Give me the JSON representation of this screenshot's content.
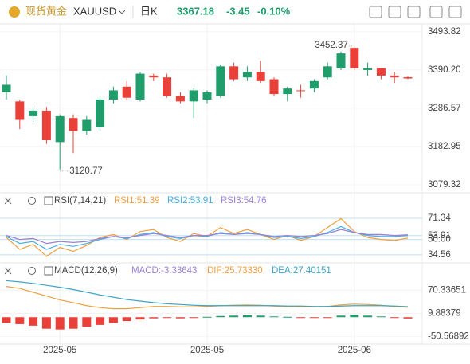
{
  "header": {
    "name": "现货黄金",
    "symbol": "XAUUSD",
    "period": "日K",
    "change": "-3.45",
    "change_pct": "-0.10%"
  },
  "chart_data": [
    {
      "type": "candlestick",
      "categories": [
        null,
        null,
        null,
        null,
        "2025-05",
        null,
        null,
        null,
        null,
        null,
        null,
        null,
        null,
        null,
        null,
        "2025-05",
        null,
        null,
        null,
        null,
        null,
        null,
        null,
        null,
        null,
        null,
        "2025-06",
        null,
        null,
        null,
        null
      ],
      "open": [
        3330,
        3305,
        3265,
        3280,
        3195,
        3260,
        3225,
        3235,
        3310,
        3345,
        3310,
        3375,
        3370,
        3320,
        3305,
        3310,
        3320,
        3400,
        3370,
        3385,
        3365,
        3325,
        3335,
        3340,
        3370,
        3395,
        3450,
        3390,
        3395,
        3375,
        3370.63
      ],
      "high": [
        3375,
        3310,
        3290,
        3290,
        3270,
        3270,
        3265,
        3320,
        3345,
        3360,
        3385,
        3380,
        3380,
        3330,
        3340,
        3335,
        3405,
        3410,
        3400,
        3415,
        3370,
        3345,
        3350,
        3365,
        3410,
        3440,
        3452.37,
        3410,
        3395,
        3385,
        3372
      ],
      "low": [
        3310,
        3230,
        3250,
        3190,
        3120.77,
        3165,
        3215,
        3225,
        3300,
        3310,
        3305,
        3360,
        3315,
        3300,
        3260,
        3300,
        3315,
        3360,
        3360,
        3355,
        3320,
        3305,
        3315,
        3330,
        3365,
        3390,
        3390,
        3375,
        3365,
        3355,
        3365
      ],
      "close": [
        3350,
        3255,
        3280,
        3200,
        3265,
        3225,
        3255,
        3310,
        3335,
        3315,
        3380,
        3370,
        3320,
        3305,
        3335,
        3330,
        3400,
        3365,
        3385,
        3360,
        3325,
        3340,
        3333,
        3360,
        3400,
        3435,
        3395,
        3395,
        3375,
        3370,
        3367.18
      ],
      "up_color": "#1f9d6b",
      "down_color": "#e9403a",
      "ylim": [
        3062,
        3515
      ],
      "yticks": [
        {
          "value": 3493.82,
          "label": "3493.82"
        },
        {
          "value": 3390.2,
          "label": "3390.20"
        },
        {
          "value": 3286.57,
          "label": "3286.57"
        },
        {
          "value": 3182.95,
          "label": "3182.95"
        },
        {
          "value": 3079.32,
          "label": "3079.32"
        }
      ]
    },
    {
      "type": "line",
      "title": "RSI(7,14,21)",
      "series": [
        {
          "name": "RSI1:51.39",
          "color": "#f0a040",
          "values": [
            52,
            40,
            45,
            33,
            42,
            38,
            44,
            52,
            55,
            50,
            58,
            60,
            52,
            48,
            56,
            53,
            62,
            56,
            60,
            55,
            50,
            54,
            49,
            53,
            62,
            71,
            58,
            52,
            50,
            49,
            51.39
          ]
        },
        {
          "name": "RSI2:53.91",
          "color": "#4aaee0",
          "values": [
            53,
            46,
            48,
            40,
            45,
            43,
            46,
            50,
            53,
            51,
            55,
            57,
            53,
            51,
            54,
            53,
            57,
            55,
            57,
            55,
            52,
            53,
            51,
            53,
            57,
            63,
            57,
            54,
            53,
            53,
            53.91
          ]
        },
        {
          "name": "RSI3:54.76",
          "color": "#9b80d6",
          "values": [
            54,
            50,
            51,
            46,
            48,
            47,
            48,
            51,
            53,
            52,
            54,
            56,
            54,
            52,
            54,
            54,
            56,
            55,
            56,
            55,
            53,
            54,
            53,
            54,
            56,
            60,
            57,
            55,
            55,
            54,
            54.76
          ]
        }
      ],
      "ylim": [
        28,
        81
      ],
      "yticks": [
        71.34,
        53.91,
        {
          "value": 50,
          "label": "50.00"
        },
        34.56
      ]
    },
    {
      "type": "bar_line",
      "title": "MACD(12,26,9)",
      "bar_name": "MACD:-3.33643",
      "bar_color_up": "#1f9d6b",
      "bar_color_down": "#e9403a",
      "bar_name_color": "#9b80d6",
      "values": [
        -15,
        -18,
        -22,
        -30,
        -32,
        -30,
        -25,
        -20,
        -15,
        -10,
        -6,
        -3,
        -2,
        -3,
        -1,
        1,
        3,
        4,
        5,
        4,
        2,
        1,
        -1,
        -2,
        -1,
        4,
        6,
        4,
        2,
        -2,
        -3.33643
      ],
      "series": [
        {
          "name": "DIF:25.73330",
          "color": "#f0a040",
          "values": [
            80,
            75,
            65,
            55,
            45,
            38,
            30,
            25,
            22,
            22,
            25,
            28,
            28,
            27,
            27,
            28,
            30,
            31,
            32,
            31,
            29,
            28,
            27,
            27,
            28,
            32,
            34,
            33,
            31,
            28,
            25.7333
          ]
        },
        {
          "name": "DEA:27.40151",
          "color": "#3aa6c6",
          "values": [
            95,
            92,
            88,
            83,
            78,
            72,
            65,
            58,
            52,
            46,
            42,
            38,
            35,
            33,
            31,
            30,
            30,
            30,
            30,
            30,
            30,
            29,
            29,
            28,
            28,
            29,
            30,
            30,
            30,
            29,
            27.40151
          ]
        }
      ],
      "ylim": [
        -70,
        100
      ],
      "yticks": [
        70.33651,
        9.88379,
        -50.56892
      ]
    }
  ]
}
